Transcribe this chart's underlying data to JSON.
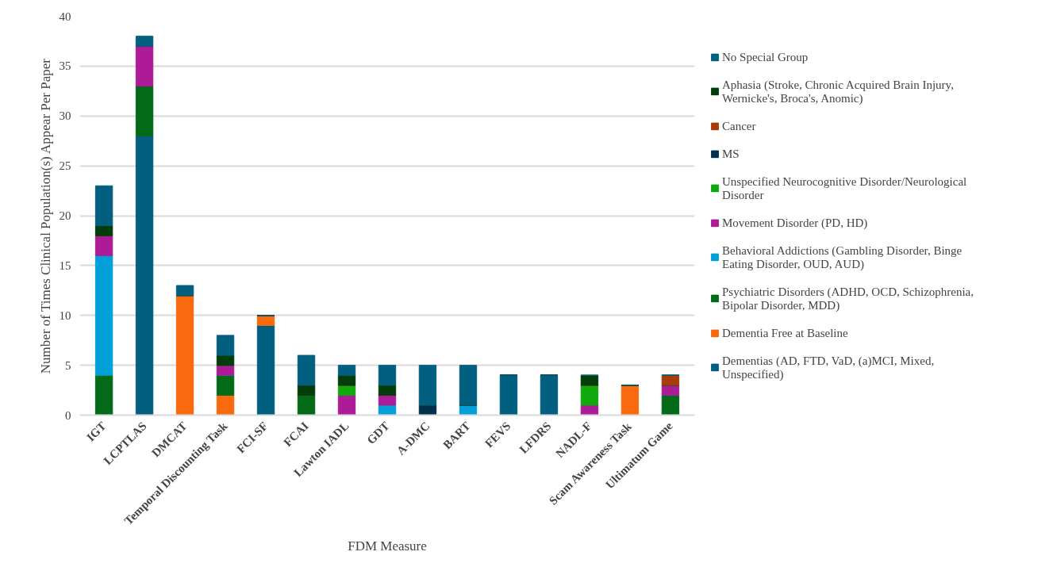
{
  "chart_data": {
    "type": "bar",
    "stacked": true,
    "xlabel": "FDM Measure",
    "ylabel": "Number of Times Clinical Population(s) Appear Per Paper",
    "categories": [
      "IGT",
      "LCPTLAS",
      "DMCAT",
      "Temporal Discounting Task",
      "FCI-SF",
      "FCAI",
      "Lawton IADL",
      "GDT",
      "A-DMC",
      "BART",
      "FEVS",
      "LFDRS",
      "NADL-F",
      "Scam Awareness Task",
      "Ultimatum Game"
    ],
    "series": [
      {
        "name": "Dementias (AD, FTD, VaD, (a)MCI, Mixed, Unspecified)",
        "color": "#035f80",
        "values": [
          0,
          28,
          0,
          0,
          9,
          0,
          0,
          0,
          0,
          0,
          4,
          4,
          0,
          0,
          0
        ]
      },
      {
        "name": "Dementia Free at Baseline",
        "color": "#f96a0f",
        "values": [
          0,
          0,
          12,
          2,
          1,
          0,
          0,
          0,
          0,
          0,
          0,
          0,
          0,
          3,
          0
        ]
      },
      {
        "name": "Psychiatric Disorders (ADHD, OCD, Schizophrenia, Bipolar Disorder, MDD)",
        "color": "#036a17",
        "values": [
          4,
          5,
          0,
          2,
          0,
          2,
          0,
          0,
          0,
          0,
          0,
          0,
          0,
          0,
          2
        ]
      },
      {
        "name": "Behavioral Addictions (Gambling Disorder, Binge Eating Disorder, OUD, AUD)",
        "color": "#02a0d8",
        "values": [
          12,
          0,
          0,
          0,
          0,
          0,
          0,
          1,
          0,
          1,
          0,
          0,
          0,
          0,
          0
        ]
      },
      {
        "name": "Movement Disorder (PD, HD)",
        "color": "#ae1b96",
        "values": [
          2,
          4,
          0,
          1,
          0,
          0,
          2,
          1,
          0,
          0,
          0,
          0,
          1,
          0,
          1
        ]
      },
      {
        "name": "Unspecified Neurocognitive Disorder/Neurological Disorder",
        "color": "#10a90e",
        "values": [
          0,
          0,
          0,
          0,
          0,
          0,
          1,
          0,
          0,
          0,
          0,
          0,
          2,
          0,
          0
        ]
      },
      {
        "name": "MS",
        "color": "#03304a",
        "values": [
          0,
          0,
          0,
          0,
          0,
          0,
          0,
          0,
          1,
          0,
          0,
          0,
          0,
          0,
          0
        ]
      },
      {
        "name": "Cancer",
        "color": "#a83c09",
        "values": [
          0,
          0,
          0,
          0,
          0,
          0,
          0,
          0,
          0,
          0,
          0,
          0,
          0,
          0,
          1
        ]
      },
      {
        "name": "Aphasia (Stroke, Chronic Acquired Brain Injury, Wernicke's, Broca's, Anomic)",
        "color": "#033d0c",
        "values": [
          1,
          0,
          0,
          1,
          0,
          1,
          1,
          1,
          0,
          0,
          0,
          0,
          1,
          0,
          0
        ]
      },
      {
        "name": "No Special Group",
        "color": "#035f80",
        "values": [
          4,
          1,
          1,
          2,
          0,
          3,
          1,
          2,
          4,
          4,
          0,
          0,
          0,
          0,
          0
        ]
      }
    ],
    "ylim": [
      0,
      40
    ],
    "yticks": [
      0,
      5,
      10,
      15,
      20,
      25,
      30,
      35,
      40
    ],
    "grid": "y",
    "legend": "right"
  }
}
